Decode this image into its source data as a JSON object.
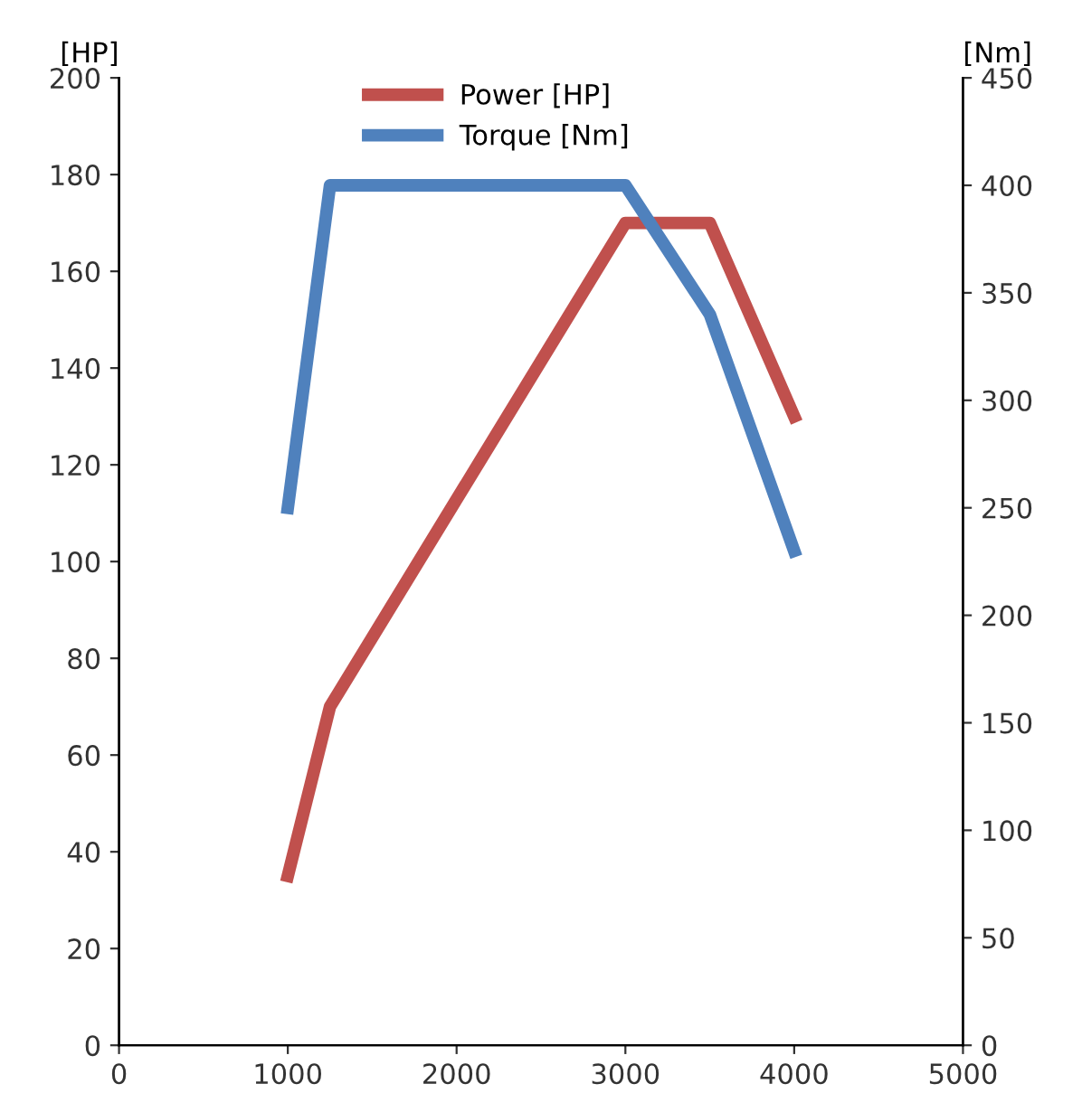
{
  "chart_data": {
    "type": "line",
    "ylabel": "[HP]",
    "y2label": "[Nm]",
    "x": [
      1000,
      1250,
      3000,
      3500,
      4000
    ],
    "series": [
      {
        "name": "Power [HP]",
        "color": "#c0504d",
        "values": [
          35,
          70,
          170,
          170,
          130
        ]
      },
      {
        "name": "Torque [Nm]",
        "color": "#4f81bd",
        "axis": "y2",
        "values": [
          250,
          400,
          400,
          340,
          230
        ]
      }
    ],
    "xlim": [
      0,
      5000
    ],
    "xticks": [
      0,
      1000,
      2000,
      3000,
      4000,
      5000
    ],
    "ylim": [
      0,
      200
    ],
    "yticks": [
      0,
      20,
      40,
      60,
      80,
      100,
      120,
      140,
      160,
      180,
      200
    ],
    "y2lim": [
      0,
      450
    ],
    "y2ticks": [
      0,
      50,
      100,
      150,
      200,
      250,
      300,
      350,
      400,
      450
    ],
    "grid": false,
    "legend": "top",
    "marker": "none",
    "line_style": "solid"
  }
}
